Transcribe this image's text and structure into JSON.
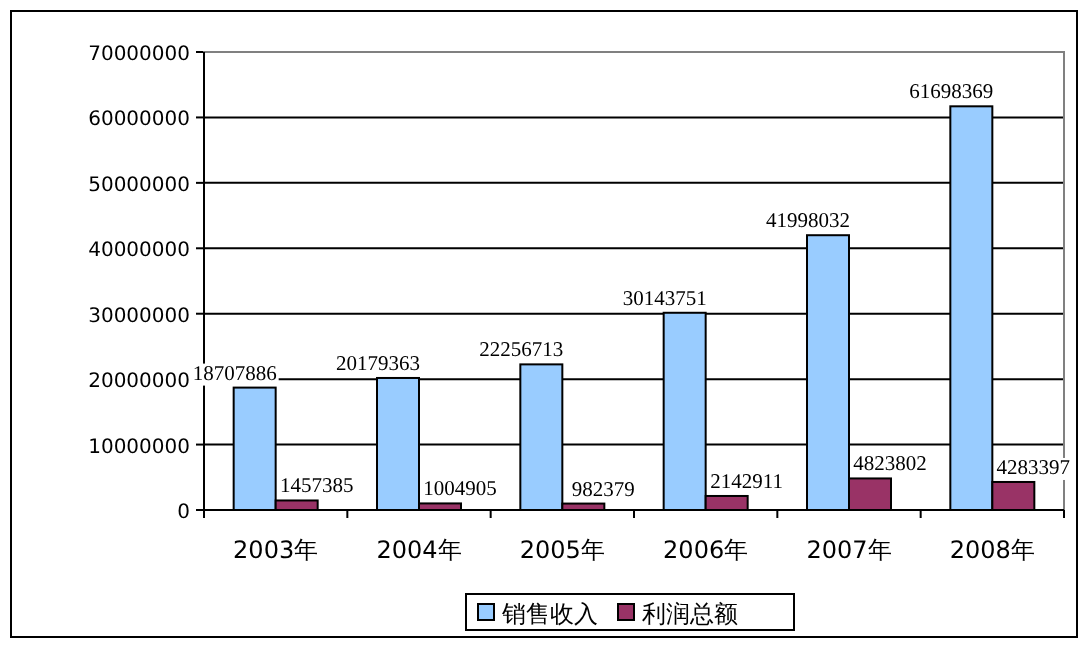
{
  "chart_data": {
    "type": "bar",
    "categories": [
      "2003年",
      "2004年",
      "2005年",
      "2006年",
      "2007年",
      "2008年"
    ],
    "series": [
      {
        "name": "销售收入",
        "color": "#99ccff",
        "values": [
          18707886,
          20179363,
          22256713,
          30143751,
          41998032,
          61698369
        ]
      },
      {
        "name": "利润总额",
        "color": "#993366",
        "values": [
          1457385,
          1004905,
          982379,
          2142911,
          4823802,
          4283397
        ]
      }
    ],
    "ylim": [
      0,
      70000000
    ],
    "yticks": [
      0,
      10000000,
      20000000,
      30000000,
      40000000,
      50000000,
      60000000,
      70000000
    ],
    "grid": "y",
    "legend": "bottom",
    "data_labels": true
  }
}
